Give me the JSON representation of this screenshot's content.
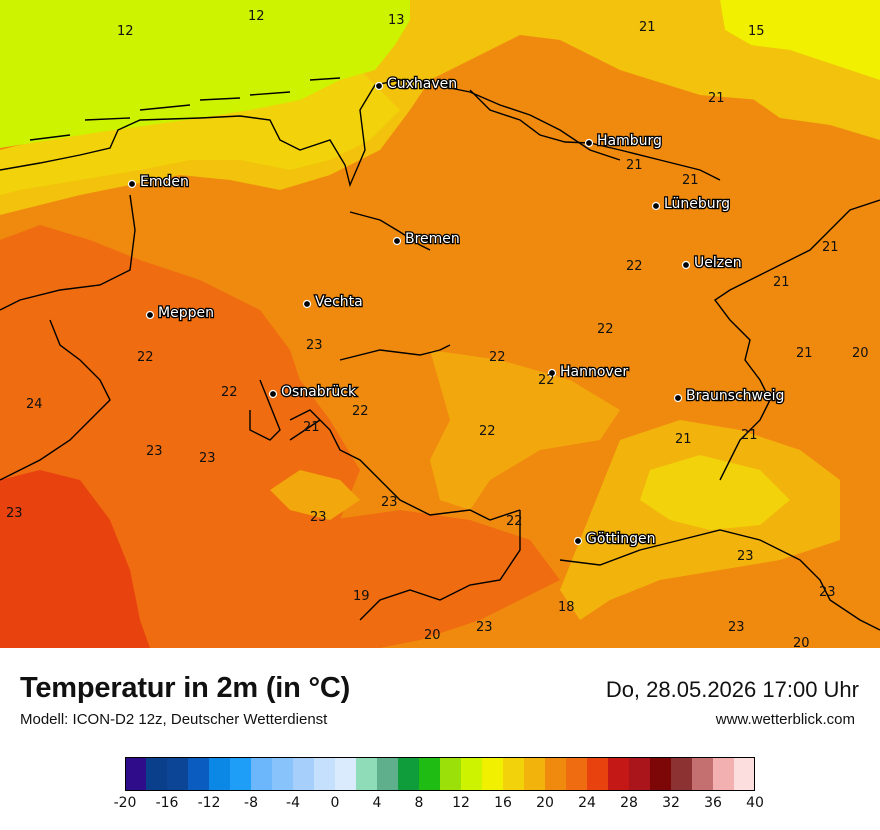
{
  "title": "Temperatur in 2m (in °C)",
  "subtitle": "Modell: ICON-D2 12z, Deutscher Wetterdienst",
  "datetime": "Do, 28.05.2026 17:00 Uhr",
  "website": "www.wetterblick.com",
  "colors": {
    "sea_light": "#cdf300",
    "yellow_bright": "#f0f000",
    "gold": "#f2c20c",
    "orange_light": "#f2a80c",
    "orange": "#f08a0e",
    "orange_dark": "#ef6c10",
    "red_orange": "#e8420e"
  },
  "cities": [
    {
      "name": "Cuxhaven"
    },
    {
      "name": "Hamburg"
    },
    {
      "name": "Emden"
    },
    {
      "name": "Lüneburg"
    },
    {
      "name": "Bremen"
    },
    {
      "name": "Uelzen"
    },
    {
      "name": "Vechta"
    },
    {
      "name": "Meppen"
    },
    {
      "name": "Hannover"
    },
    {
      "name": "Osnabrück"
    },
    {
      "name": "Braunschweig"
    },
    {
      "name": "Göttingen"
    }
  ],
  "values": [
    "12",
    "12",
    "13",
    "21",
    "15",
    "21",
    "21",
    "21",
    "22",
    "21",
    "21",
    "22",
    "22",
    "23",
    "22",
    "24",
    "22",
    "22",
    "21",
    "22",
    "20",
    "23",
    "22",
    "21",
    "21",
    "23",
    "23",
    "23",
    "22",
    "23",
    "23",
    "19",
    "18",
    "20",
    "23",
    "23",
    "20"
  ],
  "legend": {
    "colors": [
      "#2f0d8a",
      "#0a3f8c",
      "#0d4596",
      "#0b5cc0",
      "#0b87e6",
      "#1f9ef7",
      "#6cb6fb",
      "#89c3fb",
      "#a6d0fb",
      "#c4e0fc",
      "#d9ebfd",
      "#8fdcb8",
      "#5fae8c",
      "#0f9c3a",
      "#1fbd14",
      "#9ce00a",
      "#cdf300",
      "#f0f000",
      "#f2d20a",
      "#f2b40c",
      "#f08a0e",
      "#ef6c10",
      "#e8420e",
      "#c41816",
      "#a9151a",
      "#7d0606",
      "#8c3232",
      "#c47070",
      "#f2b0b0",
      "#fddede"
    ],
    "tick_labels": [
      "-20",
      "-16",
      "-12",
      "-8",
      "-4",
      "0",
      "4",
      "8",
      "12",
      "16",
      "20",
      "24",
      "28",
      "32",
      "36",
      "40"
    ]
  }
}
